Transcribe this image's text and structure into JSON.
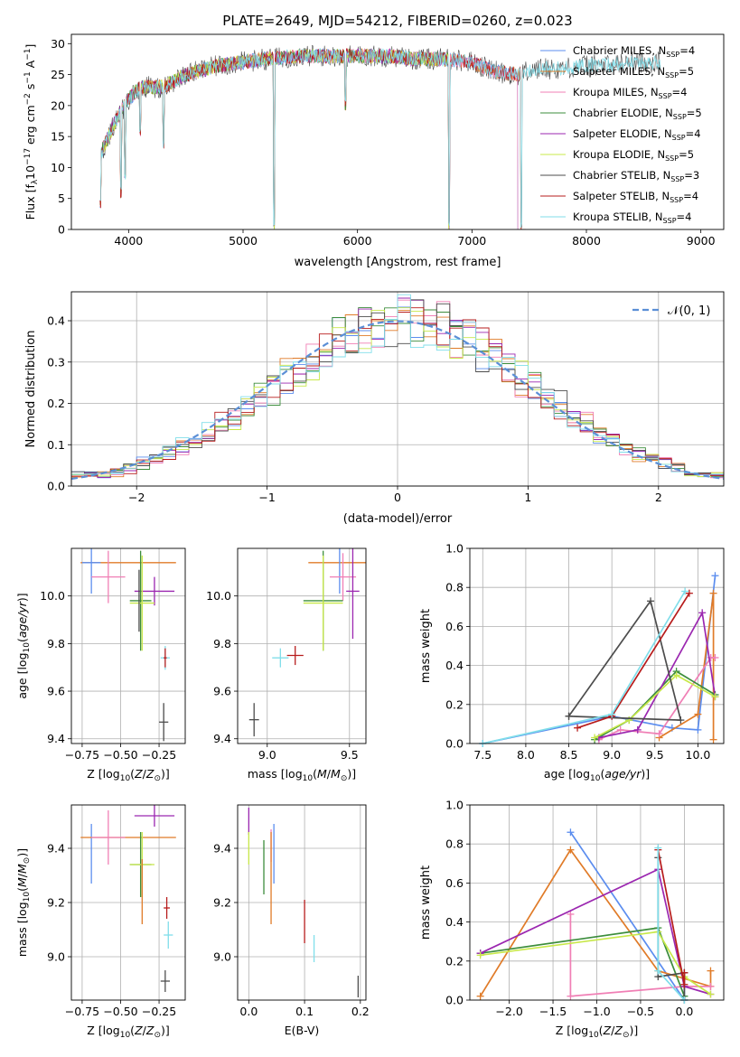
{
  "colors": {
    "chabrier_miles": "#5b8def",
    "salpeter_miles": "#e07b28",
    "kroupa_miles": "#f07fb5",
    "chabrier_elodie": "#3c8d3c",
    "salpeter_elodie": "#9b27b0",
    "kroupa_elodie": "#c8e84a",
    "chabrier_stelib": "#4d4d4d",
    "salpeter_stelib": "#b71c1c",
    "kroupa_stelib": "#80deea",
    "normal_curve": "#5b8fd6",
    "grid": "#b0b0b0"
  },
  "chart_data": [
    {
      "id": "spectrum",
      "type": "line",
      "title": "PLATE=2649, MJD=54212, FIBERID=0260, z=0.023",
      "xlabel": "wavelength [Angstrom, rest frame]",
      "ylabel": "Flux [f_λ10^-17 erg cm^-2 s^-1 A^-1]",
      "xlim": [
        3500,
        9200
      ],
      "ylim": [
        0,
        31.5
      ],
      "xticks": [
        4000,
        5000,
        6000,
        7000,
        8000,
        9000
      ],
      "yticks": [
        0,
        5,
        10,
        15,
        20,
        25,
        30
      ],
      "grid": false,
      "legend_position": "upper right",
      "series": [
        {
          "name": "Chabrier MILES, N_SSP=4",
          "color_key": "chabrier_miles",
          "x_end": 7400
        },
        {
          "name": "Salpeter MILES, N_SSP=5",
          "color_key": "salpeter_miles",
          "x_end": 7430
        },
        {
          "name": "Kroupa MILES, N_SSP=4",
          "color_key": "kroupa_miles",
          "x_end": 7400
        },
        {
          "name": "Chabrier ELODIE, N_SSP=5",
          "color_key": "chabrier_elodie",
          "x_end": 6800
        },
        {
          "name": "Salpeter ELODIE, N_SSP=4",
          "color_key": "salpeter_elodie",
          "x_end": 6800
        },
        {
          "name": "Kroupa ELODIE, N_SSP=5",
          "color_key": "kroupa_elodie",
          "x_end": 6800
        },
        {
          "name": "Chabrier STELIB, N_SSP=3",
          "color_key": "chabrier_stelib",
          "x_end": 8650
        },
        {
          "name": "Salpeter STELIB, N_SSP=4",
          "color_key": "salpeter_stelib",
          "x_end": 7430
        },
        {
          "name": "Kroupa STELIB, N_SSP=4",
          "color_key": "kroupa_stelib",
          "x_end": 8650
        }
      ],
      "continuum": {
        "x": [
          3750,
          3900,
          4000,
          4100,
          4300,
          4500,
          4800,
          5000,
          5200,
          5500,
          5800,
          6000,
          6300,
          6500,
          6800,
          7000,
          7200,
          7400,
          7600,
          7800,
          8000,
          8200,
          8400,
          8650
        ],
        "y": [
          12,
          18,
          21,
          23,
          23,
          25,
          26.5,
          27,
          27.5,
          28,
          28,
          28,
          28,
          27.5,
          27.5,
          27,
          25.5,
          25,
          26,
          26,
          26.5,
          26.5,
          27,
          27
        ]
      },
      "absorption_dips": [
        {
          "x": 3750,
          "y": 3
        },
        {
          "x": 3935,
          "y": 5
        },
        {
          "x": 3970,
          "y": 8
        },
        {
          "x": 4100,
          "y": 15
        },
        {
          "x": 4305,
          "y": 13
        },
        {
          "x": 5270,
          "y": 0
        },
        {
          "x": 5895,
          "y": 19
        },
        {
          "x": 6800,
          "y": 0
        },
        {
          "x": 7430,
          "y": 0
        }
      ]
    },
    {
      "id": "residuals",
      "type": "step",
      "xlabel": "(data-model)/error",
      "ylabel": "Normed distribution",
      "xlim": [
        -2.5,
        2.5
      ],
      "ylim": [
        0,
        0.47
      ],
      "xticks": [
        -2,
        -1,
        0,
        1,
        2
      ],
      "yticks": [
        0.0,
        0.1,
        0.2,
        0.3,
        0.4
      ],
      "grid": true,
      "legend": [
        {
          "name": "𝒩(0, 1)",
          "style": "dashed",
          "color_key": "normal_curve"
        }
      ],
      "legend_position": "upper right",
      "bin_width": 0.1
    },
    {
      "id": "age_vs_Z",
      "type": "errorbar",
      "xlabel": "Z [log10(Z/Z⊙)]",
      "ylabel": "age  [log10(age/yr)]",
      "xlim": [
        -0.82,
        -0.08
      ],
      "ylim": [
        9.38,
        10.2
      ],
      "xticks": [
        -0.75,
        -0.5,
        -0.25
      ],
      "xticklabels": [
        "−0.75",
        "−0.50",
        "−0.25"
      ],
      "yticks": [
        9.4,
        9.6,
        9.8,
        10.0
      ],
      "grid": true,
      "points": [
        {
          "c": "salpeter_miles",
          "x": -0.45,
          "xerr": 0.31,
          "y": 10.14,
          "yerr": 0.0
        },
        {
          "c": "chabrier_miles",
          "x": -0.69,
          "xerr": 0.06,
          "y": 10.14,
          "yerr": 0.13
        },
        {
          "c": "kroupa_miles",
          "x": -0.58,
          "xerr": 0.11,
          "y": 10.08,
          "yerr": 0.11
        },
        {
          "c": "salpeter_elodie",
          "x": -0.28,
          "xerr": 0.13,
          "y": 10.02,
          "yerr": 0.06
        },
        {
          "c": "chabrier_elodie",
          "x": -0.37,
          "xerr": 0.07,
          "y": 9.98,
          "yerr": 0.21
        },
        {
          "c": "kroupa_elodie",
          "x": -0.36,
          "xerr": 0.08,
          "y": 9.97,
          "yerr": 0.2
        },
        {
          "c": "chabrier_stelib",
          "x": -0.38,
          "xerr": 0.0,
          "y": 9.98,
          "yerr": 0.13
        },
        {
          "c": "kroupa_stelib",
          "x": -0.21,
          "xerr": 0.03,
          "y": 9.74,
          "yerr": 0.05
        },
        {
          "c": "salpeter_stelib",
          "x": -0.21,
          "xerr": 0.01,
          "y": 9.74,
          "yerr": 0.04
        },
        {
          "c": "chabrier_stelib",
          "x": -0.22,
          "xerr": 0.03,
          "y": 9.47,
          "yerr": 0.08
        }
      ]
    },
    {
      "id": "age_vs_mass",
      "type": "errorbar",
      "xlabel": "mass [log10(M/M⊙)]",
      "ylabel": "",
      "xlim": [
        8.82,
        9.6
      ],
      "ylim": [
        9.38,
        10.2
      ],
      "xticks": [
        9.0,
        9.5
      ],
      "xticklabels": [
        "9.0",
        "9.5"
      ],
      "yticks": [
        9.4,
        9.6,
        9.8,
        10.0
      ],
      "grid": true,
      "points": [
        {
          "c": "salpeter_miles",
          "x": 9.44,
          "xerr": 0.19,
          "y": 10.14,
          "yerr": 0.0
        },
        {
          "c": "chabrier_miles",
          "x": 9.44,
          "xerr": 0.0,
          "y": 10.14,
          "yerr": 0.13
        },
        {
          "c": "kroupa_miles",
          "x": 9.46,
          "xerr": 0.08,
          "y": 10.08,
          "yerr": 0.1
        },
        {
          "c": "salpeter_elodie",
          "x": 9.52,
          "xerr": 0.04,
          "y": 10.02,
          "yerr": 0.2
        },
        {
          "c": "chabrier_elodie",
          "x": 9.34,
          "xerr": 0.12,
          "y": 9.98,
          "yerr": 0.21
        },
        {
          "c": "kroupa_elodie",
          "x": 9.34,
          "xerr": 0.12,
          "y": 9.97,
          "yerr": 0.2
        },
        {
          "c": "salpeter_stelib",
          "x": 9.17,
          "xerr": 0.05,
          "y": 9.75,
          "yerr": 0.04
        },
        {
          "c": "kroupa_stelib",
          "x": 9.08,
          "xerr": 0.05,
          "y": 9.74,
          "yerr": 0.04
        },
        {
          "c": "chabrier_stelib",
          "x": 8.92,
          "xerr": 0.03,
          "y": 9.48,
          "yerr": 0.07
        }
      ]
    },
    {
      "id": "massweight_vs_age",
      "type": "line",
      "xlabel": "age  [log10(age/yr)]",
      "ylabel": "mass weight",
      "xlim": [
        7.35,
        10.3
      ],
      "ylim": [
        0,
        1.0
      ],
      "xticks": [
        7.5,
        8.0,
        8.5,
        9.0,
        9.5,
        10.0
      ],
      "xticklabels": [
        "7.5",
        "8.0",
        "8.5",
        "9.0",
        "9.5",
        "10.0"
      ],
      "yticks": [
        0.0,
        0.2,
        0.4,
        0.6,
        0.8,
        1.0
      ],
      "grid": true,
      "series": [
        {
          "c": "chabrier_miles",
          "x": [
            7.5,
            9.0,
            9.7,
            10.0,
            10.2
          ],
          "y": [
            0.0,
            0.14,
            0.08,
            0.07,
            0.86
          ]
        },
        {
          "c": "salpeter_miles",
          "x": [
            9.55,
            10.0,
            10.18,
            10.18
          ],
          "y": [
            0.03,
            0.15,
            0.77,
            0.02
          ]
        },
        {
          "c": "kroupa_miles",
          "x": [
            8.85,
            9.1,
            9.55,
            10.15,
            10.2
          ],
          "y": [
            0.02,
            0.07,
            0.05,
            0.44,
            0.44
          ]
        },
        {
          "c": "chabrier_elodie",
          "x": [
            8.8,
            9.2,
            9.75,
            10.2
          ],
          "y": [
            0.02,
            0.12,
            0.37,
            0.25
          ]
        },
        {
          "c": "salpeter_elodie",
          "x": [
            8.85,
            9.3,
            10.05,
            10.2
          ],
          "y": [
            0.03,
            0.07,
            0.67,
            0.24
          ]
        },
        {
          "c": "kroupa_elodie",
          "x": [
            8.8,
            9.2,
            9.75,
            10.2
          ],
          "y": [
            0.03,
            0.12,
            0.35,
            0.24
          ]
        },
        {
          "c": "chabrier_stelib",
          "x": [
            8.5,
            9.45,
            9.8,
            8.5
          ],
          "y": [
            0.14,
            0.73,
            0.12,
            0.14
          ]
        },
        {
          "c": "salpeter_stelib",
          "x": [
            8.6,
            9.0,
            9.9
          ],
          "y": [
            0.08,
            0.14,
            0.77
          ]
        },
        {
          "c": "kroupa_stelib",
          "x": [
            7.5,
            9.0,
            9.85
          ],
          "y": [
            0.0,
            0.15,
            0.78
          ]
        }
      ]
    },
    {
      "id": "mass_vs_Z",
      "type": "errorbar",
      "xlabel": "Z [log10(Z/Z⊙)]",
      "ylabel": "mass [log10(M/M⊙)]",
      "xlim": [
        -0.82,
        -0.08
      ],
      "ylim": [
        8.84,
        9.56
      ],
      "xticks": [
        -0.75,
        -0.5,
        -0.25
      ],
      "xticklabels": [
        "−0.75",
        "−0.50",
        "−0.25"
      ],
      "yticks": [
        9.0,
        9.2,
        9.4
      ],
      "grid": true,
      "points": [
        {
          "c": "chabrier_miles",
          "x": -0.69,
          "xerr": 0.0,
          "y": 9.38,
          "yerr": 0.11
        },
        {
          "c": "salpeter_miles",
          "x": -0.45,
          "xerr": 0.31,
          "y": 9.44,
          "yerr": 0.0
        },
        {
          "c": "kroupa_miles",
          "x": -0.58,
          "xerr": 0.11,
          "y": 9.44,
          "yerr": 0.1
        },
        {
          "c": "salpeter_elodie",
          "x": -0.28,
          "xerr": 0.13,
          "y": 9.52,
          "yerr": 0.04
        },
        {
          "c": "chabrier_elodie",
          "x": -0.37,
          "xerr": 0.07,
          "y": 9.34,
          "yerr": 0.12
        },
        {
          "c": "kroupa_elodie",
          "x": -0.36,
          "xerr": 0.08,
          "y": 9.34,
          "yerr": 0.12
        },
        {
          "c": "salpeter_miles",
          "x": -0.36,
          "xerr": 0.0,
          "y": 9.24,
          "yerr": 0.12
        },
        {
          "c": "salpeter_stelib",
          "x": -0.2,
          "xerr": 0.02,
          "y": 9.18,
          "yerr": 0.04
        },
        {
          "c": "kroupa_stelib",
          "x": -0.19,
          "xerr": 0.03,
          "y": 9.08,
          "yerr": 0.05
        },
        {
          "c": "chabrier_stelib",
          "x": -0.21,
          "xerr": 0.03,
          "y": 8.91,
          "yerr": 0.04
        }
      ]
    },
    {
      "id": "mass_vs_ebv",
      "type": "errorbar",
      "xlabel": "E(B-V)",
      "ylabel": "",
      "xlim": [
        -0.02,
        0.21
      ],
      "ylim": [
        8.84,
        9.56
      ],
      "xticks": [
        0.0,
        0.1,
        0.2
      ],
      "xticklabels": [
        "0.0",
        "0.1",
        "0.2"
      ],
      "yticks": [
        9.0,
        9.2,
        9.4
      ],
      "grid": true,
      "points": [
        {
          "c": "salpeter_elodie",
          "x": 0.0,
          "xerr": 0.0,
          "y": 9.5,
          "yerr": 0.05
        },
        {
          "c": "kroupa_elodie",
          "x": 0.0,
          "xerr": 0.0,
          "y": 9.4,
          "yerr": 0.06
        },
        {
          "c": "chabrier_elodie",
          "x": 0.027,
          "xerr": 0.0,
          "y": 9.33,
          "yerr": 0.1
        },
        {
          "c": "chabrier_miles",
          "x": 0.045,
          "xerr": 0.0,
          "y": 9.38,
          "yerr": 0.11
        },
        {
          "c": "kroupa_miles",
          "x": 0.04,
          "xerr": 0.0,
          "y": 9.41,
          "yerr": 0.06
        },
        {
          "c": "salpeter_miles",
          "x": 0.04,
          "xerr": 0.0,
          "y": 9.29,
          "yerr": 0.17
        },
        {
          "c": "salpeter_stelib",
          "x": 0.1,
          "xerr": 0.0,
          "y": 9.13,
          "yerr": 0.08
        },
        {
          "c": "kroupa_stelib",
          "x": 0.117,
          "xerr": 0.0,
          "y": 9.03,
          "yerr": 0.05
        },
        {
          "c": "chabrier_stelib",
          "x": 0.196,
          "xerr": 0.0,
          "y": 8.89,
          "yerr": 0.04
        }
      ]
    },
    {
      "id": "massweight_vs_Z",
      "type": "line",
      "xlabel": "Z [log10(Z/Z⊙)]",
      "ylabel": "mass weight",
      "xlim": [
        -2.45,
        0.45
      ],
      "ylim": [
        0,
        1.0
      ],
      "xticks": [
        -2.0,
        -1.5,
        -1.0,
        -0.5,
        0.0
      ],
      "xticklabels": [
        "−2.0",
        "−1.5",
        "−1.0",
        "−0.5",
        "0.0"
      ],
      "yticks": [
        0.0,
        0.2,
        0.4,
        0.6,
        0.8,
        1.0
      ],
      "grid": true,
      "series": [
        {
          "c": "chabrier_miles",
          "x": [
            -1.3,
            0.0,
            0.0
          ],
          "y": [
            0.86,
            0.0,
            0.14
          ]
        },
        {
          "c": "salpeter_miles",
          "x": [
            -2.33,
            -1.3,
            -0.3,
            0.3,
            0.3
          ],
          "y": [
            0.02,
            0.77,
            0.15,
            0.07,
            0.15
          ]
        },
        {
          "c": "kroupa_miles",
          "x": [
            -1.3,
            -1.3,
            0.0,
            0.3
          ],
          "y": [
            0.44,
            0.02,
            0.07,
            0.07
          ]
        },
        {
          "c": "chabrier_elodie",
          "x": [
            -2.33,
            -0.3,
            0.0
          ],
          "y": [
            0.24,
            0.37,
            0.02
          ]
        },
        {
          "c": "salpeter_elodie",
          "x": [
            -2.33,
            -0.3,
            0.0,
            0.3
          ],
          "y": [
            0.24,
            0.67,
            0.07,
            0.03
          ]
        },
        {
          "c": "kroupa_elodie",
          "x": [
            -2.33,
            -0.3,
            0.0,
            0.3
          ],
          "y": [
            0.23,
            0.35,
            0.12,
            0.03
          ]
        },
        {
          "c": "chabrier_stelib",
          "x": [
            -0.3,
            -0.3,
            0.0,
            0.0
          ],
          "y": [
            0.73,
            0.12,
            0.14,
            0.0
          ]
        },
        {
          "c": "salpeter_stelib",
          "x": [
            -0.3,
            0.0,
            0.0
          ],
          "y": [
            0.77,
            0.08,
            0.14
          ]
        },
        {
          "c": "kroupa_stelib",
          "x": [
            -0.3,
            -0.3,
            0.0
          ],
          "y": [
            0.78,
            0.15,
            0.0
          ]
        }
      ]
    }
  ]
}
